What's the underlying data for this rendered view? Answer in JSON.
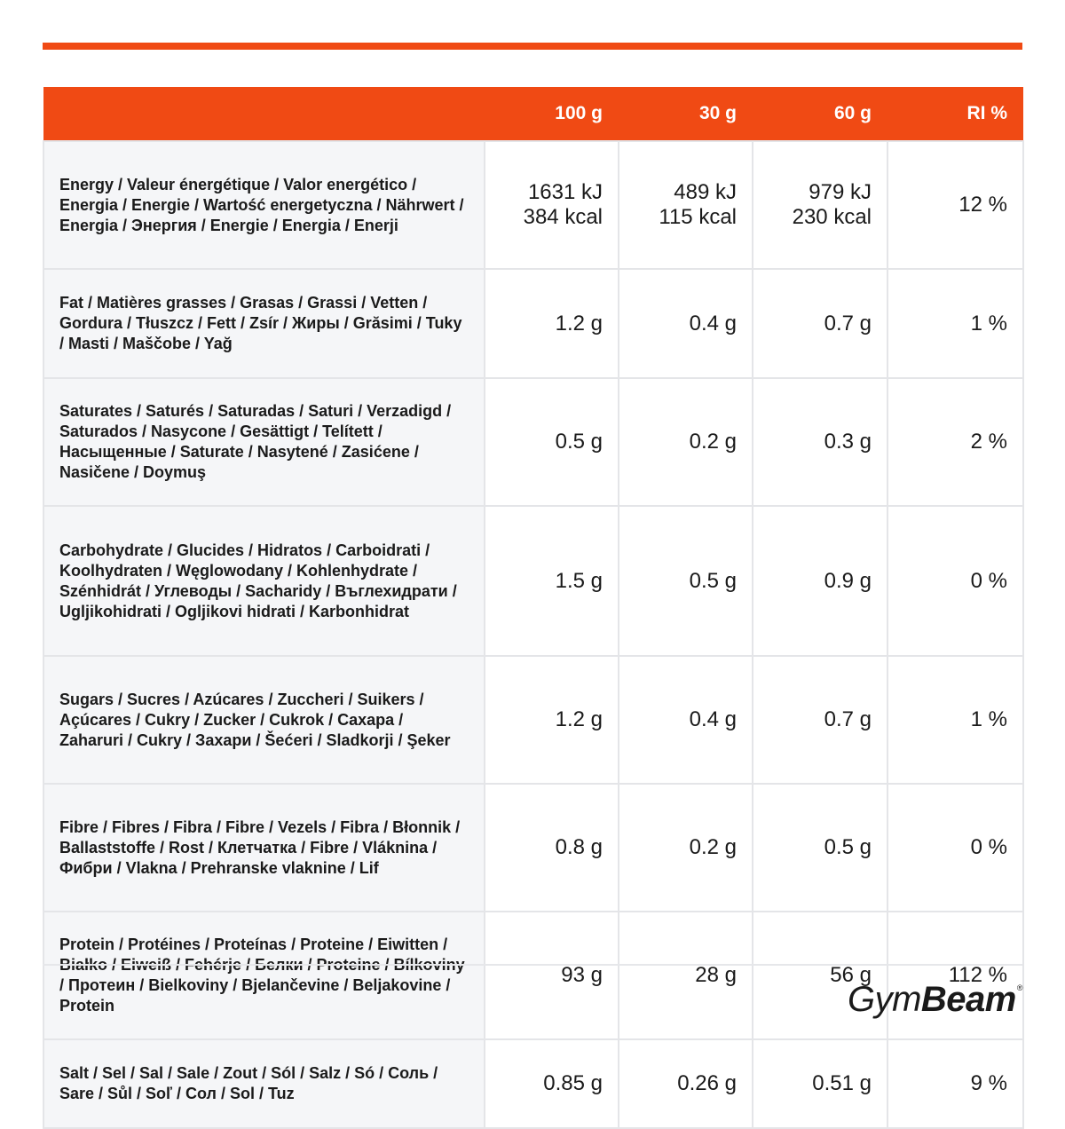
{
  "header": {
    "columns": [
      "100 g",
      "30 g",
      "60 g",
      "RI %"
    ]
  },
  "rows": [
    {
      "name": "Energy / Valeur énergétique / Valor energético / Energia / Energie / Wartość energetyczna / Nährwert / Energia / Энергия / Energie / Energia / Enerji",
      "v100": "1631 kJ",
      "v100b": "384 kcal",
      "v30": "489 kJ",
      "v30b": "115 kcal",
      "v60": "979 kJ",
      "v60b": "230 kcal",
      "ri": "12 %"
    },
    {
      "name": "Fat / Matières grasses / Grasas / Grassi / Vetten / Gordura / Tłuszcz / Fett / Zsír / Жиры / Grăsimi / Tuky / Masti / Maščobe / Yağ",
      "v100": "1.2 g",
      "v30": "0.4 g",
      "v60": "0.7 g",
      "ri": "1 %"
    },
    {
      "name": "Saturates / Saturés / Saturadas / Saturi / Verzadigd / Saturados / Nasycone / Gesättigt / Telített / Насыщенные / Saturate / Nasytené / Zasićene / Nasičene / Doymuş",
      "v100": "0.5 g",
      "v30": "0.2 g",
      "v60": "0.3 g",
      "ri": "2 %"
    },
    {
      "name": "Carbohydrate / Glucides / Hidratos / Carboidrati / Koolhydraten / Węglowodany / Kohlenhydrate / Szénhidrát / Углеводы / Sacharidy / Въглехидрати / Ugljikohidrati / Ogljikovi hidrati / Karbonhidrat",
      "v100": "1.5 g",
      "v30": "0.5 g",
      "v60": "0.9 g",
      "ri": "0 %"
    },
    {
      "name": "Sugars / Sucres / Azúcares / Zuccheri / Suikers / Açúcares / Cukry / Zucker / Cukrok / Caxapa / Zaharuri / Cukry / Захари / Šećeri / Sladkorji / Şeker",
      "v100": "1.2 g",
      "v30": "0.4 g",
      "v60": "0.7 g",
      "ri": "1 %"
    },
    {
      "name": "Fibre / Fibres / Fibra / Fibre / Vezels / Fibra / Błonnik / Ballaststoffe / Rost / Клетчатка / Fibre / Vláknina / Фибри / Vlakna / Prehranske vlaknine / Lif",
      "v100": "0.8 g",
      "v30": "0.2 g",
      "v60": "0.5 g",
      "ri": "0 %"
    },
    {
      "name": "Protein / Protéines / Proteínas / Proteine / Eiwitten / Białko / Eiweiß / Fehérje / Белки / Proteine / Bílkoviny / Протеин / Bielkoviny / Bjelančevine / Beljakovine / Protein",
      "v100": "93 g",
      "v30": "28 g",
      "v60": "56 g",
      "ri": "112 %"
    },
    {
      "name": "Salt / Sel / Sal / Sale / Zout / Sól / Salz / Só / Соль / Sare / Sůl / Soľ / Сол / Sol / Tuz",
      "v100": "0.85 g",
      "v30": "0.26 g",
      "v60": "0.51 g",
      "ri": "9 %"
    }
  ],
  "brand": {
    "part1": "Gym",
    "part2": "Beam",
    "mark": "®"
  },
  "colors": {
    "accent": "#f04a14",
    "label_bg": "#f5f6f8",
    "grid": "#e4e5e8"
  }
}
